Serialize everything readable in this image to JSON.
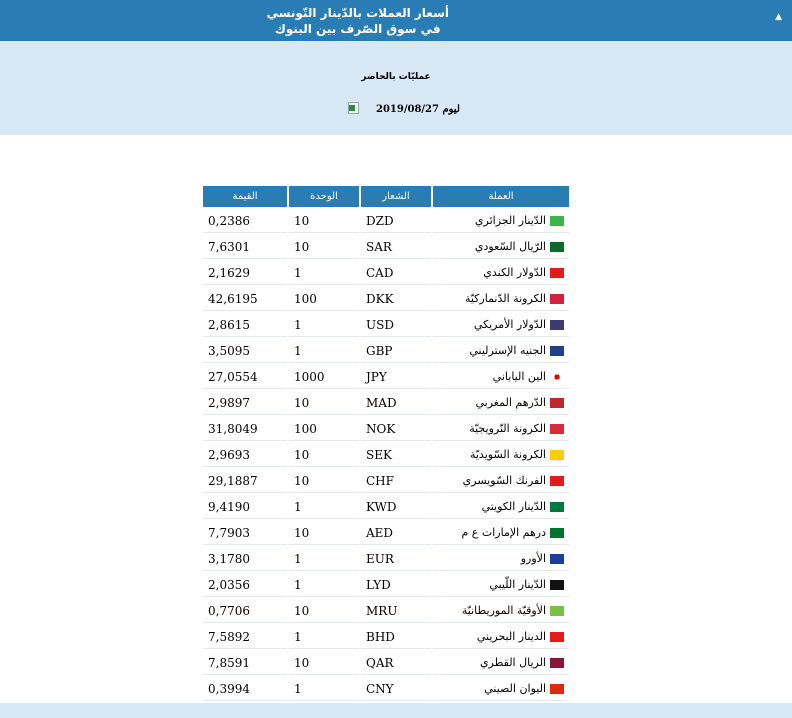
{
  "header": {
    "title_line1": "أسعار العملات بالدّينار التّونسي",
    "title_line2": "في سوق الصّرف بين البنوك",
    "collapse_icon": "triangle-up-icon"
  },
  "subtitle": "عمليّات بالحاضر",
  "date_label": "ليوم 2019/08/27",
  "export_icon": "excel-icon",
  "table": {
    "headers": {
      "currency": "العملة",
      "code": "الشعار",
      "unit": "الوحدة",
      "value": "القيمة"
    },
    "rows": [
      {
        "name": "الدّينار الجزائري",
        "code": "DZD",
        "unit": "10",
        "value": "0,2386",
        "flag": "#3bb54a"
      },
      {
        "name": "الرّيال السّعودي",
        "code": "SAR",
        "unit": "10",
        "value": "7,6301",
        "flag": "#0b6b2e"
      },
      {
        "name": "الدّولار الكندي",
        "code": "CAD",
        "unit": "1",
        "value": "2,1629",
        "flag": "#e41b1b"
      },
      {
        "name": "الكرونة الدّنماركيّة",
        "code": "DKK",
        "unit": "100",
        "value": "42,6195",
        "flag": "#d4213d"
      },
      {
        "name": "الدّولار الأمريكي",
        "code": "USD",
        "unit": "1",
        "value": "2,8615",
        "flag": "#3c3b6e"
      },
      {
        "name": "الجنيه الإسترليني",
        "code": "GBP",
        "unit": "1",
        "value": "3,5095",
        "flag": "#1f3f8f"
      },
      {
        "name": "الين الياباني",
        "code": "JPY",
        "unit": "1000",
        "value": "27,0554",
        "flag": "#ffffff"
      },
      {
        "name": "الدّرهم المغربي",
        "code": "MAD",
        "unit": "10",
        "value": "2,9897",
        "flag": "#c1272d"
      },
      {
        "name": "الكرونة النّرويجيّة",
        "code": "NOK",
        "unit": "100",
        "value": "31,8049",
        "flag": "#d52b3a"
      },
      {
        "name": "الكرونة السّويديّة",
        "code": "SEK",
        "unit": "10",
        "value": "2,9693",
        "flag": "#fecc00"
      },
      {
        "name": "الفرنك السّويسري",
        "code": "CHF",
        "unit": "10",
        "value": "29,1887",
        "flag": "#e41b1b"
      },
      {
        "name": "الدّينار الكويتي",
        "code": "KWD",
        "unit": "1",
        "value": "9,4190",
        "flag": "#007a3d"
      },
      {
        "name": "درهم الإمارات ع م",
        "code": "AED",
        "unit": "10",
        "value": "7,7903",
        "flag": "#00732f"
      },
      {
        "name": "الأورو",
        "code": "EUR",
        "unit": "1",
        "value": "3,1780",
        "flag": "#1a3f9f"
      },
      {
        "name": "الدّينار اللّيبي",
        "code": "LYD",
        "unit": "1",
        "value": "2,0356",
        "flag": "#111111"
      },
      {
        "name": "الأوقيّة الموريطانيّة",
        "code": "MRU",
        "unit": "10",
        "value": "0,7706",
        "flag": "#7ac143"
      },
      {
        "name": "الدينار البحريني",
        "code": "BHD",
        "unit": "1",
        "value": "7,5892",
        "flag": "#e41b1b"
      },
      {
        "name": "الريال القطري",
        "code": "QAR",
        "unit": "10",
        "value": "7,8591",
        "flag": "#8a1538"
      },
      {
        "name": "اليوان الصيني",
        "code": "CNY",
        "unit": "1",
        "value": "0,3994",
        "flag": "#de2910"
      }
    ]
  }
}
